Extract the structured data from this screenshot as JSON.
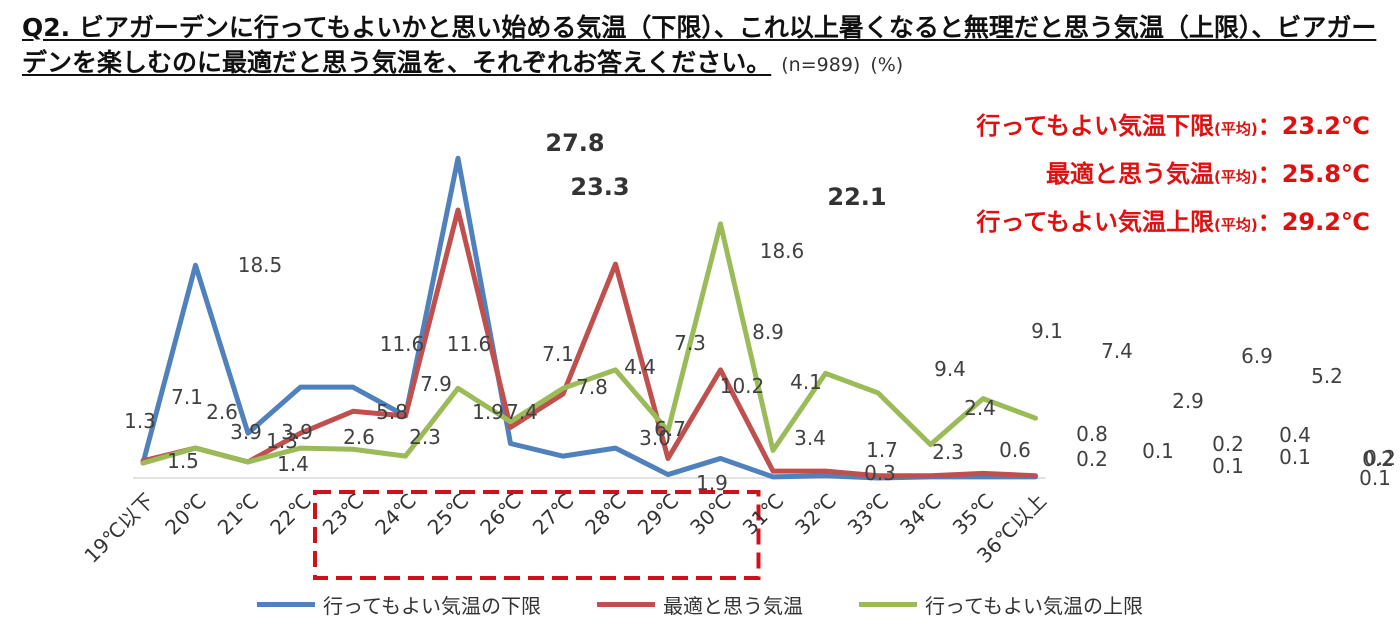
{
  "question": {
    "text": "Q2. ビアガーデンに行ってもよいかと思い始める気温（下限）、これ以上暑くなると無理だと思う気温（上限）、ビアガーデンを楽しむのに最適だと思う気温を、それぞれお答えください。",
    "sample": "(n=989)",
    "unit": "(%)"
  },
  "averages": [
    {
      "label": "行ってもよい気温下限",
      "qualifier": "(平均)",
      "value": "：23.2℃"
    },
    {
      "label": "最適と思う気温",
      "qualifier": "(平均)",
      "value": "：25.8℃"
    },
    {
      "label": "行ってもよい気温上限",
      "qualifier": "(平均)",
      "value": "：29.2℃"
    }
  ],
  "chart_data": {
    "type": "line",
    "title": "",
    "xlabel": "",
    "ylabel": "",
    "ylim": [
      0,
      30
    ],
    "grid": false,
    "legend_position": "bottom",
    "categories": [
      "19℃以下",
      "20℃",
      "21℃",
      "22℃",
      "23℃",
      "24℃",
      "25℃",
      "26℃",
      "27℃",
      "28℃",
      "29℃",
      "30℃",
      "31℃",
      "32℃",
      "33℃",
      "34℃",
      "35℃",
      "36℃以上"
    ],
    "highlight_categories": [
      "23℃",
      "30℃"
    ],
    "series": [
      {
        "name": "行ってもよい気温の下限",
        "color": "#4f81bd",
        "values": [
          1.3,
          18.5,
          3.9,
          7.9,
          7.9,
          5.4,
          27.8,
          3.0,
          1.9,
          2.6,
          0.3,
          1.7,
          0.1,
          0.2,
          0.0,
          0.1,
          0.1,
          0.1
        ]
      },
      {
        "name": "最適と思う気温",
        "color": "#c0504d",
        "values": [
          1.5,
          2.6,
          1.4,
          3.9,
          5.8,
          5.4,
          23.3,
          4.4,
          7.3,
          18.6,
          1.7,
          9.4,
          0.6,
          0.6,
          0.2,
          0.2,
          0.4,
          0.2
        ]
      },
      {
        "name": "行ってもよい気温の上限",
        "color": "#9bbb59",
        "values": [
          1.3,
          2.6,
          1.4,
          2.6,
          2.5,
          1.9,
          7.8,
          4.9,
          7.8,
          9.4,
          4.1,
          22.1,
          2.4,
          9.1,
          7.4,
          2.9,
          6.9,
          5.2
        ]
      }
    ],
    "data_labels": [
      "1.3",
      "18.5",
      "1.3",
      "11.6",
      "11.6",
      "27.8",
      "3.0",
      "1.9",
      "0.3",
      "0.1",
      "7.1",
      "2.6",
      "3.9",
      "5.8",
      "7.9",
      "23.3",
      "4.4",
      "7.3",
      "18.6",
      "3.4",
      "9.4",
      "0.6",
      "0.2",
      "0.1",
      "0.2",
      "1.5",
      "1.4",
      "3.9",
      "2.6",
      "2.3",
      "1.9",
      "7.4",
      "7.1",
      "7.8",
      "6.7",
      "8.9",
      "10.2",
      "4.1",
      "22.1",
      "1.7",
      "2.3",
      "2.4",
      "9.1",
      "0.8",
      "7.4",
      "2.9",
      "0.2",
      "0.1",
      "6.9",
      "0.4",
      "0.1",
      "5.2",
      "0.2"
    ]
  }
}
